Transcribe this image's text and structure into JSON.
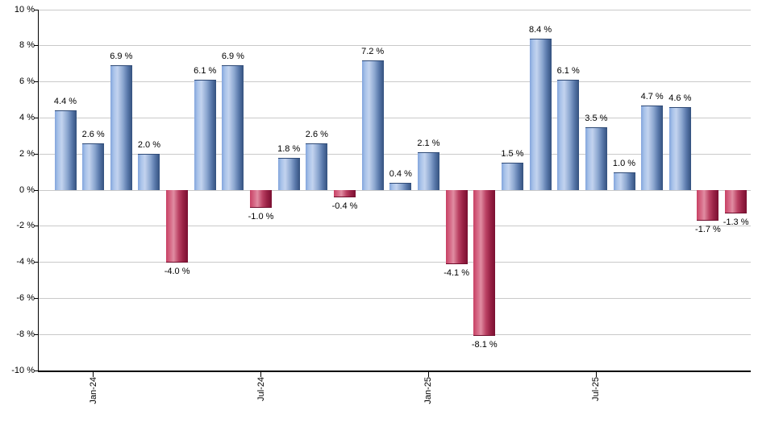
{
  "chart_data": {
    "type": "bar",
    "title": "",
    "xlabel": "",
    "ylabel": "",
    "ylim": [
      -10,
      10
    ],
    "y_tick_step": 2,
    "grid": true,
    "legend": false,
    "y_tick_labels": [
      "10 %",
      "8 %",
      "6 %",
      "4 %",
      "2 %",
      "0 %",
      "-2 %",
      "-4 %",
      "-6 %",
      "-8 %",
      "-10 %"
    ],
    "y_tick_values": [
      10,
      8,
      6,
      4,
      2,
      0,
      -2,
      -4,
      -6,
      -8,
      -10
    ],
    "x_tick_labels": [
      {
        "label": "Jan-24",
        "bar_index": 1
      },
      {
        "label": "Jul-24",
        "bar_index": 7
      },
      {
        "label": "Jan-25",
        "bar_index": 13
      },
      {
        "label": "Jul-25",
        "bar_index": 19
      }
    ],
    "bars": [
      {
        "value": 4.4,
        "label": "4.4 %"
      },
      {
        "value": 2.6,
        "label": "2.6 %"
      },
      {
        "value": 6.9,
        "label": "6.9 %"
      },
      {
        "value": 2.0,
        "label": "2.0 %"
      },
      {
        "value": -4.0,
        "label": "-4.0 %"
      },
      {
        "value": 6.1,
        "label": "6.1 %"
      },
      {
        "value": 6.9,
        "label": "6.9 %"
      },
      {
        "value": -1.0,
        "label": "-1.0 %"
      },
      {
        "value": 1.8,
        "label": "1.8 %"
      },
      {
        "value": 2.6,
        "label": "2.6 %"
      },
      {
        "value": -0.4,
        "label": "-0.4 %"
      },
      {
        "value": 7.2,
        "label": "7.2 %"
      },
      {
        "value": 0.4,
        "label": "0.4 %"
      },
      {
        "value": 2.1,
        "label": "2.1 %"
      },
      {
        "value": -4.1,
        "label": "-4.1 %"
      },
      {
        "value": -8.1,
        "label": "-8.1 %"
      },
      {
        "value": 1.5,
        "label": "1.5 %"
      },
      {
        "value": 8.4,
        "label": "8.4 %"
      },
      {
        "value": 6.1,
        "label": "6.1 %"
      },
      {
        "value": 3.5,
        "label": "3.5 %"
      },
      {
        "value": 1.0,
        "label": "1.0 %"
      },
      {
        "value": 4.7,
        "label": "4.7 %"
      },
      {
        "value": 4.6,
        "label": "4.6 %"
      },
      {
        "value": -1.7,
        "label": "-1.7 %"
      },
      {
        "value": -1.3,
        "label": "-1.3 %"
      }
    ],
    "colors": {
      "positive_bar": "#6f94d4",
      "negative_bar": "#c43b5e",
      "gridline": "#c9c9c9",
      "axis": "#000000",
      "label_text": "#000000",
      "background": "#ffffff"
    }
  }
}
